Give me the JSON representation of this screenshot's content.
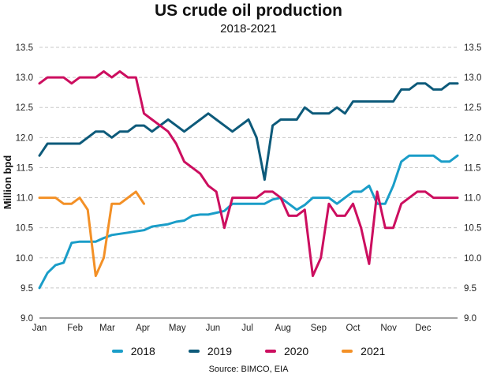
{
  "chart_data": {
    "type": "line",
    "title": "US crude oil production",
    "subtitle": "2018-2021",
    "ylabel": "Million bpd",
    "ylabel_right": "",
    "source": "Source: BIMCO, EIA",
    "ylim": [
      9.0,
      13.5
    ],
    "yticks": [
      "9.0",
      "9.5",
      "10.0",
      "10.5",
      "11.0",
      "11.5",
      "12.0",
      "12.5",
      "13.0",
      "13.5"
    ],
    "x_tick_labels": [
      "Jan",
      "Feb",
      "Mar",
      "Apr",
      "May",
      "Jun",
      "Jul",
      "Aug",
      "Sep",
      "Oct",
      "Nov",
      "Dec"
    ],
    "x_unit": "week of year",
    "xlim": [
      1,
      53
    ],
    "grid": "horizontal dashed",
    "legend_position": "bottom",
    "series": [
      {
        "name": "2018",
        "color": "#1a9dc8",
        "x": [
          1,
          2,
          3,
          4,
          5,
          6,
          7,
          8,
          9,
          10,
          11,
          12,
          13,
          14,
          15,
          16,
          17,
          18,
          19,
          20,
          21,
          22,
          23,
          24,
          25,
          26,
          27,
          28,
          29,
          30,
          31,
          32,
          33,
          34,
          35,
          36,
          37,
          38,
          39,
          40,
          41,
          42,
          43,
          44,
          45,
          46,
          47,
          48,
          49,
          50,
          51,
          52,
          53
        ],
        "values": [
          9.5,
          9.75,
          9.88,
          9.92,
          10.25,
          10.27,
          10.27,
          10.27,
          10.33,
          10.38,
          10.4,
          10.42,
          10.44,
          10.46,
          10.52,
          10.54,
          10.56,
          10.6,
          10.62,
          10.7,
          10.72,
          10.72,
          10.75,
          10.78,
          10.9,
          10.9,
          10.9,
          10.9,
          10.9,
          10.97,
          11.0,
          10.9,
          10.8,
          10.88,
          11.0,
          11.0,
          11.0,
          10.9,
          11.0,
          11.1,
          11.1,
          11.2,
          10.9,
          10.9,
          11.2,
          11.6,
          11.7,
          11.7,
          11.7,
          11.7,
          11.6,
          11.6,
          11.7
        ]
      },
      {
        "name": "2019",
        "color": "#0d5a7a",
        "x": [
          1,
          2,
          3,
          4,
          5,
          6,
          7,
          8,
          9,
          10,
          11,
          12,
          13,
          14,
          15,
          16,
          17,
          18,
          19,
          20,
          21,
          22,
          23,
          24,
          25,
          26,
          27,
          28,
          29,
          30,
          31,
          32,
          33,
          34,
          35,
          36,
          37,
          38,
          39,
          40,
          41,
          42,
          43,
          44,
          45,
          46,
          47,
          48,
          49,
          50,
          51,
          52,
          53
        ],
        "values": [
          11.7,
          11.9,
          11.9,
          11.9,
          11.9,
          11.9,
          12.0,
          12.1,
          12.1,
          12.0,
          12.1,
          12.1,
          12.2,
          12.2,
          12.1,
          12.2,
          12.3,
          12.2,
          12.1,
          12.2,
          12.3,
          12.4,
          12.3,
          12.2,
          12.1,
          12.2,
          12.3,
          12.0,
          11.3,
          12.2,
          12.3,
          12.3,
          12.3,
          12.5,
          12.4,
          12.4,
          12.4,
          12.5,
          12.4,
          12.6,
          12.6,
          12.6,
          12.6,
          12.6,
          12.6,
          12.8,
          12.8,
          12.9,
          12.9,
          12.8,
          12.8,
          12.9,
          12.9
        ]
      },
      {
        "name": "2020",
        "color": "#cc0e5f",
        "x": [
          1,
          2,
          3,
          4,
          5,
          6,
          7,
          8,
          9,
          10,
          11,
          12,
          13,
          14,
          15,
          16,
          17,
          18,
          19,
          20,
          21,
          22,
          23,
          24,
          25,
          26,
          27,
          28,
          29,
          30,
          31,
          32,
          33,
          34,
          35,
          36,
          37,
          38,
          39,
          40,
          41,
          42,
          43,
          44,
          45,
          46,
          47,
          48,
          49,
          50,
          51,
          52,
          53
        ],
        "values": [
          12.9,
          13.0,
          13.0,
          13.0,
          12.9,
          13.0,
          13.0,
          13.0,
          13.1,
          13.0,
          13.1,
          13.0,
          13.0,
          12.4,
          12.3,
          12.2,
          12.1,
          11.9,
          11.6,
          11.5,
          11.4,
          11.2,
          11.1,
          10.5,
          11.0,
          11.0,
          11.0,
          11.0,
          11.1,
          11.1,
          11.0,
          10.7,
          10.7,
          10.8,
          9.7,
          10.0,
          10.9,
          10.7,
          10.7,
          10.9,
          10.5,
          9.9,
          11.1,
          10.5,
          10.5,
          10.9,
          11.0,
          11.1,
          11.1,
          11.0,
          11.0,
          11.0,
          11.0
        ]
      },
      {
        "name": "2021",
        "color": "#f39026",
        "x": [
          1,
          2,
          3,
          4,
          5,
          6,
          7,
          8,
          9,
          10,
          11,
          12,
          13,
          14
        ],
        "values": [
          11.0,
          11.0,
          11.0,
          10.9,
          10.9,
          11.0,
          10.8,
          9.7,
          10.0,
          10.9,
          10.9,
          11.0,
          11.1,
          10.9
        ]
      }
    ]
  }
}
